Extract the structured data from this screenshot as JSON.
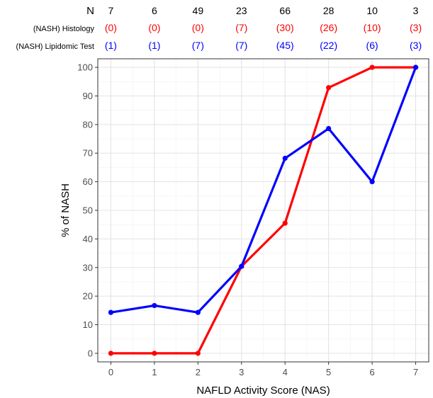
{
  "chart_data": {
    "type": "line",
    "xlabel": "NAFLD Activity Score (NAS)",
    "ylabel": "% of NASH",
    "x": [
      0,
      1,
      2,
      3,
      4,
      5,
      6,
      7
    ],
    "xlim": [
      -0.3,
      7.3
    ],
    "ylim": [
      -3,
      103
    ],
    "yticks": [
      0,
      10,
      20,
      30,
      40,
      50,
      60,
      70,
      80,
      90,
      100
    ],
    "grid": true,
    "series": [
      {
        "name": "(NASH) Histology",
        "color": "#ff0000",
        "values": [
          0,
          0,
          0,
          30.4,
          45.5,
          92.9,
          100,
          100
        ]
      },
      {
        "name": "(NASH) Lipidomic Test",
        "color": "#0000ff",
        "values": [
          14.3,
          16.7,
          14.3,
          30.4,
          68.2,
          78.6,
          60,
          100
        ]
      }
    ],
    "header_rows": [
      {
        "label": "N",
        "color": "#000000",
        "values": [
          "7",
          "6",
          "49",
          "23",
          "66",
          "28",
          "10",
          "3"
        ]
      },
      {
        "label": "(NASH) Histology",
        "color": "#ff0000",
        "values": [
          "(0)",
          "(0)",
          "(0)",
          "(7)",
          "(30)",
          "(26)",
          "(10)",
          "(3)"
        ]
      },
      {
        "label": "(NASH) Lipidomic Test",
        "color": "#0000ff",
        "values": [
          "(1)",
          "(1)",
          "(7)",
          "(7)",
          "(45)",
          "(22)",
          "(6)",
          "(3)"
        ]
      }
    ]
  }
}
